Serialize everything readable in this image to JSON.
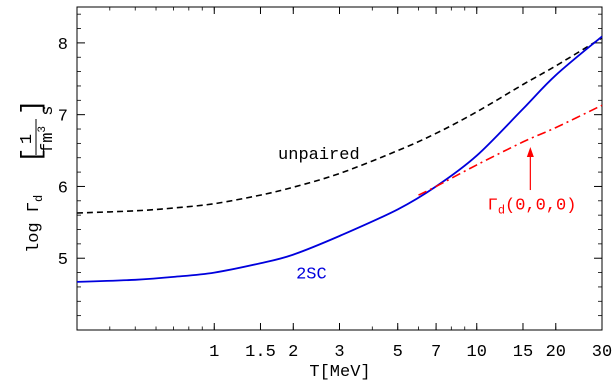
{
  "chart_data": {
    "type": "line",
    "xscale": "log",
    "xlim": [
      0.3,
      30
    ],
    "ylim": [
      4,
      8.5
    ],
    "xlabel": "T[MeV]",
    "ylabel": {
      "prefix": "log Γ",
      "sub": "d",
      "numerator": "1",
      "den_unit": "fm",
      "den_exp": "3",
      "den_tail": " s"
    },
    "x_ticks_major": [
      {
        "value": 1,
        "label": "1"
      },
      {
        "value": 1.5,
        "label": "1.5"
      },
      {
        "value": 2,
        "label": "2"
      },
      {
        "value": 3,
        "label": "3"
      },
      {
        "value": 5,
        "label": "5"
      },
      {
        "value": 7,
        "label": "7"
      },
      {
        "value": 10,
        "label": "10"
      },
      {
        "value": 15,
        "label": "15"
      },
      {
        "value": 20,
        "label": "20"
      },
      {
        "value": 30,
        "label": "30"
      }
    ],
    "y_ticks_major": [
      {
        "value": 5,
        "label": "5"
      },
      {
        "value": 6,
        "label": "6"
      },
      {
        "value": 7,
        "label": "7"
      },
      {
        "value": 8,
        "label": "8"
      }
    ],
    "series": [
      {
        "name": "unpaired",
        "color": "#000000",
        "style": "dashed",
        "x": [
          0.3,
          0.5,
          0.7,
          1,
          1.5,
          2,
          3,
          5,
          7,
          10,
          15,
          20,
          30
        ],
        "y": [
          5.63,
          5.66,
          5.7,
          5.76,
          5.88,
          5.99,
          6.18,
          6.5,
          6.74,
          7.04,
          7.42,
          7.68,
          8.07
        ]
      },
      {
        "name": "2SC",
        "color": "#0000dd",
        "style": "solid",
        "x": [
          0.3,
          0.5,
          0.7,
          1,
          1.5,
          2,
          3,
          5,
          7,
          10,
          15,
          20,
          30
        ],
        "y": [
          4.67,
          4.7,
          4.74,
          4.8,
          4.93,
          5.05,
          5.31,
          5.68,
          6.0,
          6.43,
          7.08,
          7.55,
          8.09
        ]
      },
      {
        "name": "Γd(0,0,0)",
        "color": "#ff0000",
        "style": "dashdot",
        "x": [
          6,
          7,
          10,
          15,
          20,
          30
        ],
        "y": [
          5.88,
          6.0,
          6.3,
          6.62,
          6.82,
          7.13
        ]
      }
    ],
    "annotations": {
      "unpaired": {
        "text": "unpaired",
        "color": "#000000",
        "x": 1.75,
        "y": 6.38
      },
      "twosc": {
        "text": "2SC",
        "color": "#0000dd",
        "x": 2.05,
        "y": 4.72
      },
      "gamma": {
        "prefix": "Γ",
        "sub": "d",
        "args": "(0,0,0)",
        "color": "#ff0000",
        "x": 11.0,
        "y": 5.68
      },
      "arrow": {
        "color": "#ff0000",
        "x": 16,
        "y_from": 5.95,
        "y_to": 6.55
      }
    }
  }
}
